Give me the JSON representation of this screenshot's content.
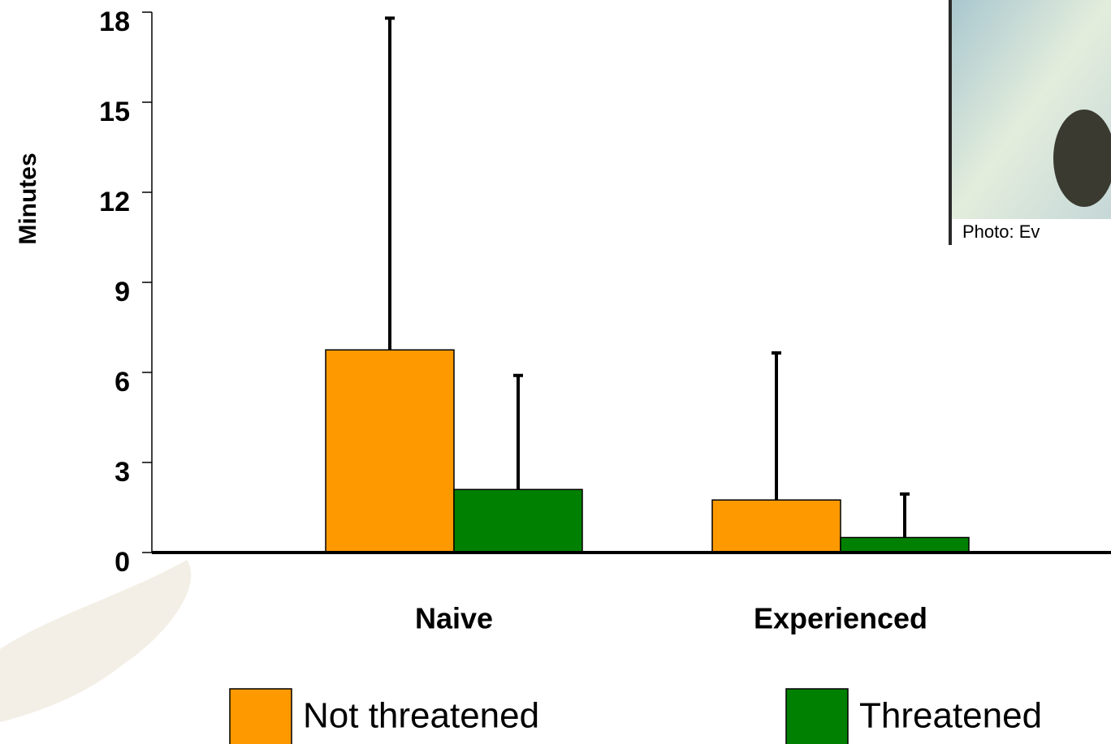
{
  "chart_data": {
    "type": "bar",
    "y_label": "Minutes",
    "categories": [
      "Naive",
      "Experienced"
    ],
    "series": [
      {
        "name": "Not threatened",
        "color": "#ff9900",
        "values": [
          6.75,
          1.75
        ],
        "errors": [
          11.05,
          4.9
        ]
      },
      {
        "name": "Threatened",
        "color": "#008000",
        "values": [
          2.1,
          0.5
        ],
        "errors": [
          3.8,
          1.45
        ]
      }
    ],
    "ylim": [
      0,
      18
    ],
    "yticks": [
      0,
      3,
      6,
      9,
      12,
      15,
      18
    ],
    "photo_credit": "Photo: Ev"
  }
}
